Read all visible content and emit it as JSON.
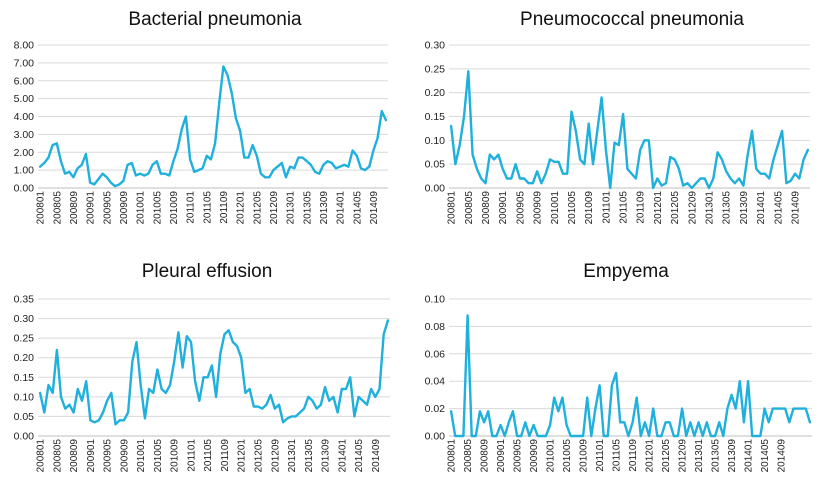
{
  "chart_data": [
    {
      "type": "line",
      "title": "Bacterial pneumonia",
      "xlabel": "",
      "ylabel": "",
      "ylim": [
        0,
        8
      ],
      "yticks": [
        "8.00",
        "7.00",
        "6.00",
        "5.00",
        "4.00",
        "3.00",
        "2.00",
        "1.00",
        "0.00"
      ],
      "x_tick_labels": [
        "200801",
        "200805",
        "200809",
        "200901",
        "200905",
        "200909",
        "201001",
        "201005",
        "201009",
        "201101",
        "201105",
        "201109",
        "201201",
        "201205",
        "201209",
        "201301",
        "201305",
        "201309",
        "201401",
        "201405",
        "201409"
      ],
      "grid": true,
      "line_color": "#1fb0dc",
      "series": [
        {
          "values": [
            1.2,
            1.4,
            1.7,
            2.4,
            2.5,
            1.5,
            0.8,
            0.9,
            0.6,
            1.1,
            1.3,
            1.9,
            0.3,
            0.2,
            0.5,
            0.8,
            0.6,
            0.3,
            0.1,
            0.2,
            0.4,
            1.3,
            1.4,
            0.7,
            0.8,
            0.7,
            0.8,
            1.3,
            1.5,
            0.8,
            0.8,
            0.7,
            1.5,
            2.2,
            3.3,
            4.0,
            1.6,
            0.9,
            1.0,
            1.1,
            1.8,
            1.6,
            2.5,
            4.8,
            6.8,
            6.3,
            5.3,
            3.9,
            3.2,
            1.7,
            1.7,
            2.4,
            1.8,
            0.8,
            0.6,
            0.6,
            1.0,
            1.2,
            1.4,
            0.6,
            1.2,
            1.1,
            1.7,
            1.7,
            1.5,
            1.3,
            0.9,
            0.8,
            1.3,
            1.5,
            1.4,
            1.1,
            1.2,
            1.3,
            1.2,
            2.1,
            1.8,
            1.1,
            1.0,
            1.2,
            2.1,
            2.8,
            4.3,
            3.8
          ]
        }
      ]
    },
    {
      "type": "line",
      "title": "Pneumococcal pneumonia",
      "xlabel": "",
      "ylabel": "",
      "ylim": [
        0,
        0.3
      ],
      "yticks": [
        "0.30",
        "0.25",
        "0.20",
        "0.15",
        "0.10",
        "0.05",
        "0.00"
      ],
      "x_tick_labels": [
        "200801",
        "200805",
        "200809",
        "200901",
        "200905",
        "200909",
        "201001",
        "201005",
        "201009",
        "201101",
        "201105",
        "201109",
        "201201",
        "201205",
        "201209",
        "201301",
        "201305",
        "201309",
        "201401",
        "201405",
        "201409"
      ],
      "grid": true,
      "line_color": "#1fb0dc",
      "series": [
        {
          "values": [
            0.13,
            0.05,
            0.09,
            0.15,
            0.245,
            0.07,
            0.04,
            0.02,
            0.01,
            0.07,
            0.06,
            0.07,
            0.04,
            0.02,
            0.02,
            0.05,
            0.02,
            0.02,
            0.01,
            0.01,
            0.035,
            0.01,
            0.03,
            0.06,
            0.055,
            0.055,
            0.03,
            0.03,
            0.16,
            0.12,
            0.06,
            0.05,
            0.135,
            0.05,
            0.12,
            0.19,
            0.08,
            0.0,
            0.095,
            0.09,
            0.155,
            0.04,
            0.03,
            0.02,
            0.08,
            0.1,
            0.1,
            0.0,
            0.02,
            0.005,
            0.01,
            0.065,
            0.06,
            0.04,
            0.005,
            0.01,
            0.0,
            0.01,
            0.02,
            0.02,
            0.0,
            0.02,
            0.075,
            0.06,
            0.035,
            0.02,
            0.01,
            0.02,
            0.005,
            0.07,
            0.12,
            0.04,
            0.03,
            0.03,
            0.02,
            0.06,
            0.09,
            0.12,
            0.01,
            0.015,
            0.03,
            0.02,
            0.06,
            0.08
          ]
        }
      ]
    },
    {
      "type": "line",
      "title": "Pleural effusion",
      "xlabel": "",
      "ylabel": "",
      "ylim": [
        0,
        0.35
      ],
      "yticks": [
        "0.35",
        "0.30",
        "0.25",
        "0.20",
        "0.15",
        "0.10",
        "0.05",
        "0.00"
      ],
      "x_tick_labels": [
        "200801",
        "200805",
        "200809",
        "200901",
        "200905",
        "200909",
        "201001",
        "201005",
        "201009",
        "201101",
        "201105",
        "201109",
        "201201",
        "201205",
        "201209",
        "201301",
        "201305",
        "201309",
        "201401",
        "201405",
        "201409"
      ],
      "grid": true,
      "line_color": "#1fb0dc",
      "series": [
        {
          "values": [
            0.11,
            0.06,
            0.13,
            0.11,
            0.22,
            0.1,
            0.07,
            0.08,
            0.06,
            0.12,
            0.09,
            0.14,
            0.04,
            0.035,
            0.04,
            0.06,
            0.09,
            0.11,
            0.03,
            0.04,
            0.04,
            0.06,
            0.19,
            0.24,
            0.13,
            0.045,
            0.12,
            0.11,
            0.17,
            0.12,
            0.11,
            0.13,
            0.19,
            0.265,
            0.175,
            0.255,
            0.24,
            0.14,
            0.09,
            0.15,
            0.15,
            0.18,
            0.1,
            0.21,
            0.26,
            0.27,
            0.24,
            0.23,
            0.2,
            0.11,
            0.12,
            0.075,
            0.075,
            0.07,
            0.08,
            0.105,
            0.07,
            0.08,
            0.035,
            0.045,
            0.05,
            0.05,
            0.06,
            0.07,
            0.1,
            0.09,
            0.07,
            0.08,
            0.125,
            0.09,
            0.1,
            0.06,
            0.12,
            0.12,
            0.15,
            0.05,
            0.1,
            0.09,
            0.08,
            0.12,
            0.1,
            0.12,
            0.26,
            0.295
          ]
        }
      ]
    },
    {
      "type": "line",
      "title": "Empyema",
      "xlabel": "",
      "ylabel": "",
      "ylim": [
        0,
        0.1
      ],
      "yticks": [
        "0.10",
        "0.08",
        "0.06",
        "0.04",
        "0.02",
        "0.00"
      ],
      "x_tick_labels": [
        "200801",
        "200805",
        "200809",
        "200901",
        "200905",
        "200909",
        "201001",
        "201005",
        "201009",
        "201101",
        "201105",
        "201109",
        "201201",
        "201205",
        "201209",
        "201301",
        "201305",
        "201309",
        "201401",
        "201405",
        "201409"
      ],
      "grid": true,
      "line_color": "#1fb0dc",
      "series": [
        {
          "values": [
            0.018,
            0.0,
            0.0,
            0.0,
            0.088,
            0.0,
            0.0,
            0.018,
            0.01,
            0.018,
            0.0,
            0.0,
            0.008,
            0.0,
            0.01,
            0.018,
            0.0,
            0.0,
            0.01,
            0.0,
            0.008,
            0.0,
            0.0,
            0.0,
            0.008,
            0.028,
            0.018,
            0.028,
            0.008,
            0.0,
            0.0,
            0.0,
            0.0,
            0.028,
            0.0,
            0.02,
            0.037,
            0.0,
            0.0,
            0.037,
            0.046,
            0.01,
            0.01,
            0.0,
            0.01,
            0.028,
            0.0,
            0.01,
            0.0,
            0.02,
            0.0,
            0.0,
            0.01,
            0.01,
            0.0,
            0.0,
            0.02,
            0.0,
            0.01,
            0.0,
            0.01,
            0.0,
            0.01,
            0.0,
            0.0,
            0.01,
            0.0,
            0.02,
            0.03,
            0.02,
            0.04,
            0.01,
            0.04,
            0.0,
            0.0,
            0.0,
            0.02,
            0.01,
            0.02,
            0.02,
            0.02,
            0.02,
            0.01,
            0.02,
            0.02,
            0.02,
            0.02,
            0.01
          ]
        }
      ]
    }
  ]
}
